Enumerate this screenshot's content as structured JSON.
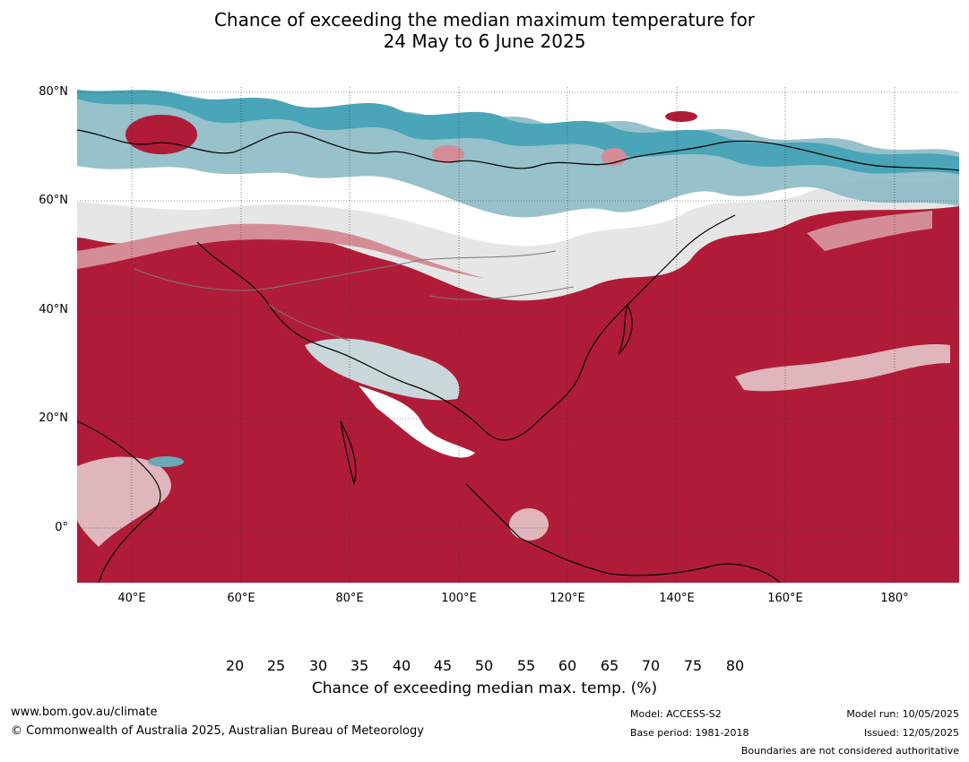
{
  "title": {
    "line1": "Chance of exceeding the median maximum temperature for",
    "line2": "24 May to 6 June 2025"
  },
  "axes": {
    "lat_labels": [
      "80°N",
      "60°N",
      "40°N",
      "20°N",
      "0°"
    ],
    "lon_labels": [
      "40°E",
      "60°E",
      "80°E",
      "100°E",
      "120°E",
      "140°E",
      "160°E",
      "180°"
    ]
  },
  "colorbar": {
    "ticks": [
      "20",
      "25",
      "30",
      "35",
      "40",
      "45",
      "50",
      "55",
      "60",
      "65",
      "70",
      "75",
      "80"
    ],
    "colors": [
      "#4aa5b8",
      "#6aa9b6",
      "#85b6c2",
      "#a9c4ca",
      "#cad7da",
      "#e7eef0",
      "#ffffff",
      "#ffffff",
      "#e6e6e6",
      "#deb6bc",
      "#d48d96",
      "#c7646f",
      "#b94452",
      "#b01c37"
    ],
    "label": "Chance of exceeding median max. temp. (%)"
  },
  "footer": {
    "website": "www.bom.gov.au/climate",
    "copyright": "© Commonwealth of Australia 2025, Australian Bureau of Meteorology",
    "model": "Model: ACCESS-S2",
    "base_period": "Base period: 1981-2018",
    "model_run": "Model run: 10/05/2025",
    "issued": "Issued: 12/05/2025",
    "disclaimer": "Boundaries are not considered authoritative"
  }
}
